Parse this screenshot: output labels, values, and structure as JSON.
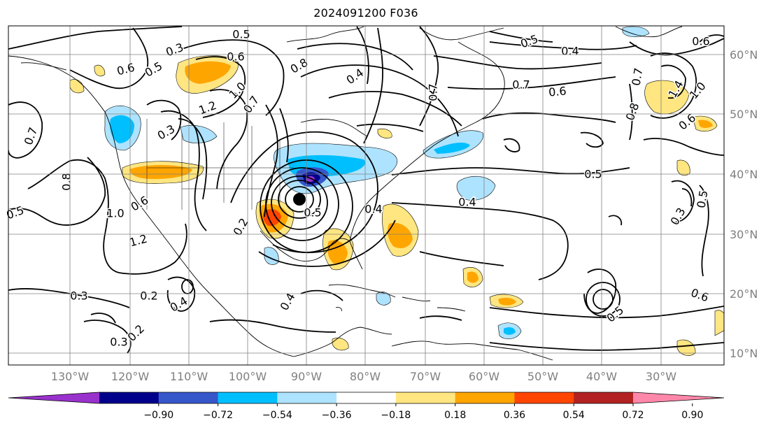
{
  "title": "2024091200 F036",
  "map": {
    "lon_range": [
      -140,
      15
    ],
    "lat_range": [
      6,
      66
    ],
    "grid": true,
    "lon_tick_labels": [
      "130°W",
      "120°W",
      "110°W",
      "100°W",
      "90°W",
      "80°W",
      "70°W",
      "60°W",
      "50°W",
      "40°W",
      "30°W"
    ],
    "lat_tick_labels": [
      "60°N",
      "50°N",
      "40°N",
      "30°N",
      "20°N",
      "10°N"
    ],
    "center_marker": {
      "lon": -90,
      "lat": 36
    }
  },
  "colorbar": {
    "orientation": "horizontal",
    "extend": "both",
    "tick_labels": [
      "−0.90",
      "−0.72",
      "−0.54",
      "−0.36",
      "−0.18",
      "0.18",
      "0.36",
      "0.54",
      "0.72",
      "0.90"
    ],
    "colors": [
      "#9932cc",
      "#00008b",
      "#3657c9",
      "#00bfff",
      "#aee3ff",
      "#ffffff",
      "#ffe680",
      "#ffa500",
      "#ff4500",
      "#b22222",
      "#ff88aa"
    ]
  },
  "contour_labels": [
    "0.5",
    "0.6",
    "0.3",
    "0.5",
    "0.6",
    "0.8",
    "0.4",
    "0.7",
    "0.6",
    "0.5",
    "0.4",
    "0.6",
    "0.7",
    "0.8",
    "1.4",
    "1.0",
    "0.6",
    "0.7",
    "1.2",
    "1.0",
    "0.7",
    "0.3",
    "0.8",
    "0.7",
    "0.5",
    "1.0",
    "0.6",
    "1.2",
    "0.3",
    "0.2",
    "0.4",
    "0.2",
    "0.3",
    "0.2",
    "0.5",
    "0.4",
    "0.4",
    "0.5",
    "0.3",
    "0.5",
    "0.6",
    "0.5",
    "0.4"
  ],
  "shading_colors": {
    "light_blue": "#aee3ff",
    "blue": "#00bfff",
    "mid_blue": "#3657c9",
    "navy": "#00008b",
    "purple": "#9932cc",
    "light_yellow": "#ffe680",
    "orange": "#ffa500",
    "red_orange": "#ff4500"
  }
}
